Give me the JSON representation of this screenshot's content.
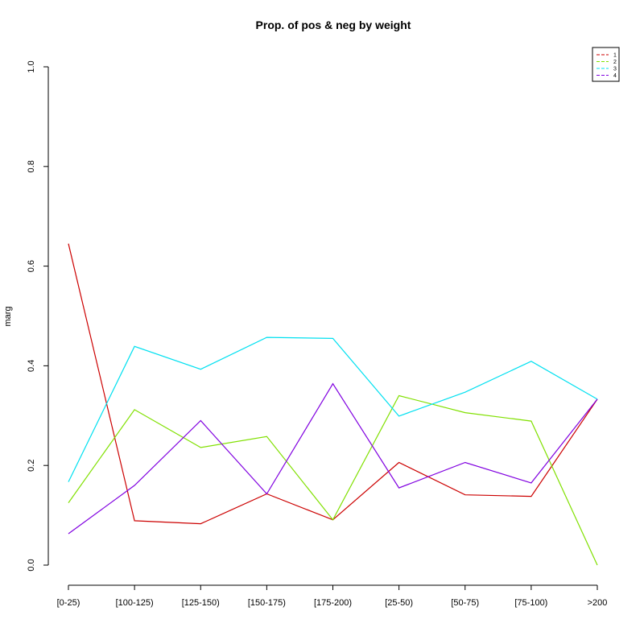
{
  "chart_data": {
    "type": "line",
    "title": "Prop. of pos & neg by weight",
    "xlabel": "",
    "ylabel": "marg",
    "ylim": [
      0,
      1
    ],
    "yticks": [
      "0.0",
      "0.2",
      "0.4",
      "0.6",
      "0.8",
      "1.0"
    ],
    "grid": false,
    "legend_position": "top-right",
    "categories": [
      "[0-25)",
      "[100-125)",
      "[125-150)",
      "[150-175)",
      "[175-200)",
      "[25-50)",
      "[50-75)",
      "[75-100)",
      ">200"
    ],
    "series": [
      {
        "name": "1",
        "color": "#cc0000",
        "values": [
          0.645,
          0.089,
          0.083,
          0.143,
          0.091,
          0.206,
          0.141,
          0.138,
          0.333
        ]
      },
      {
        "name": "2",
        "color": "#80e000",
        "values": [
          0.125,
          0.312,
          0.236,
          0.258,
          0.091,
          0.34,
          0.306,
          0.289,
          0.0
        ]
      },
      {
        "name": "3",
        "color": "#00e0f0",
        "values": [
          0.167,
          0.439,
          0.393,
          0.457,
          0.455,
          0.299,
          0.347,
          0.409,
          0.333
        ]
      },
      {
        "name": "4",
        "color": "#8000e0",
        "values": [
          0.063,
          0.16,
          0.29,
          0.143,
          0.364,
          0.155,
          0.206,
          0.165,
          0.333
        ]
      }
    ]
  }
}
